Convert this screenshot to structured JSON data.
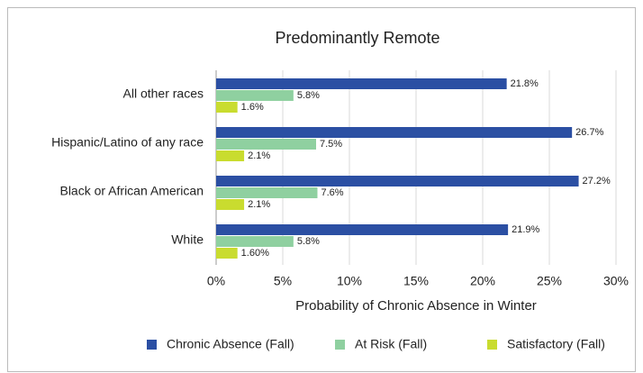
{
  "chart_data": {
    "type": "bar",
    "orientation": "horizontal",
    "title": "Predominantly Remote",
    "categories": [
      "All other races",
      "Hispanic/Latino of any race",
      "Black or African American",
      "White"
    ],
    "series": [
      {
        "name": "Chronic Absence (Fall)",
        "color": "#2b4fa3",
        "values": [
          21.8,
          26.7,
          27.2,
          21.9
        ],
        "value_labels": [
          "21.8%",
          "26.7%",
          "27.2%",
          "21.9%"
        ]
      },
      {
        "name": "At Risk (Fall)",
        "color": "#8fd0a0",
        "values": [
          5.8,
          7.5,
          7.6,
          5.8
        ],
        "value_labels": [
          "5.8%",
          "7.5%",
          "7.6%",
          "5.8%"
        ]
      },
      {
        "name": "Satisfactory (Fall)",
        "color": "#c9dc2f",
        "values": [
          1.6,
          2.1,
          2.1,
          1.6
        ],
        "value_labels": [
          "1.6%",
          "2.1%",
          "2.1%",
          "1.60%"
        ]
      }
    ],
    "xlabel": "Probability of Chronic Absence in Winter",
    "xlim": [
      0,
      30
    ],
    "xticks": [
      {
        "value": 0,
        "label": "0%"
      },
      {
        "value": 5,
        "label": "5%"
      },
      {
        "value": 10,
        "label": "10%"
      },
      {
        "value": 15,
        "label": "15%"
      },
      {
        "value": 20,
        "label": "20%"
      },
      {
        "value": 25,
        "label": "25%"
      },
      {
        "value": 30,
        "label": "30%"
      }
    ],
    "grid": true,
    "legend": "bottom"
  }
}
